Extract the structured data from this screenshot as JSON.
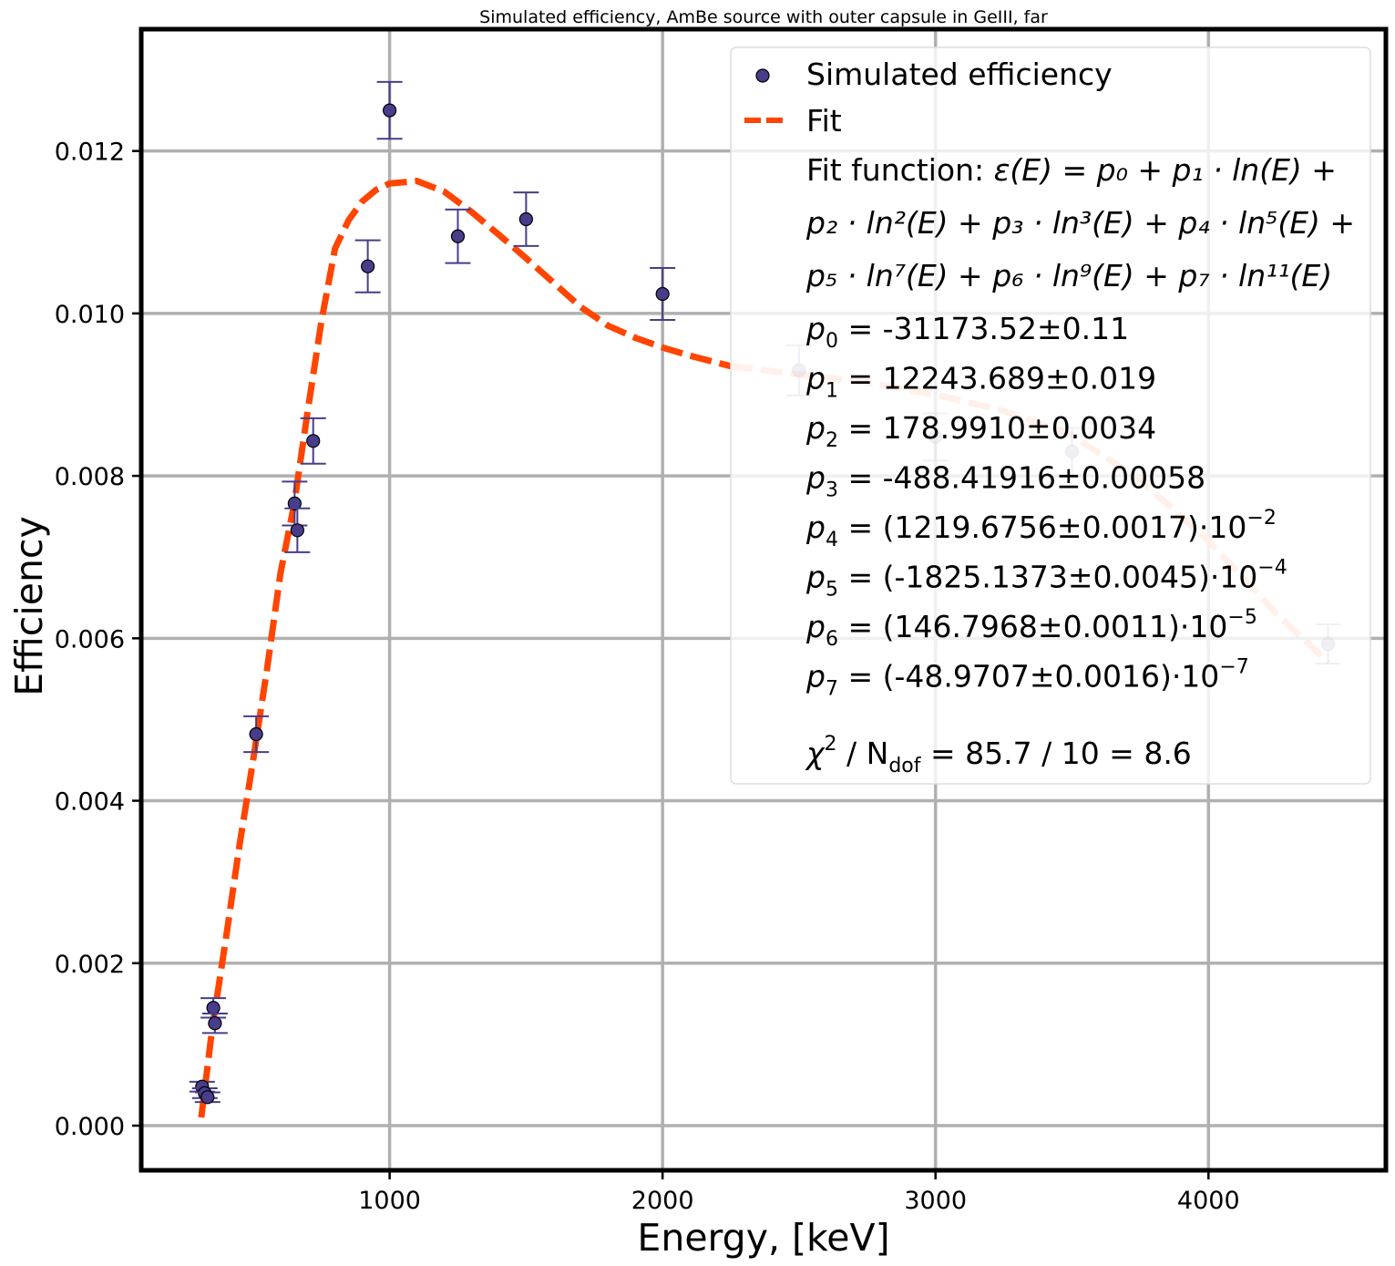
{
  "chart_data": {
    "type": "scatter",
    "title": "Simulated efficiency, AmBe source with outer capsule in GeIII, far",
    "xlabel": "Energy, [keV]",
    "ylabel": "Efficiency",
    "xlim": [
      90,
      4650
    ],
    "ylim": [
      -0.00055,
      0.0135
    ],
    "xticks": [
      1000,
      2000,
      3000,
      4000
    ],
    "xtick_labels": [
      "1000",
      "2000",
      "3000",
      "4000"
    ],
    "yticks": [
      0.0,
      0.002,
      0.004,
      0.006,
      0.008,
      0.01,
      0.012
    ],
    "ytick_labels": [
      "0.000",
      "0.002",
      "0.004",
      "0.006",
      "0.008",
      "0.010",
      "0.012"
    ],
    "grid": true,
    "legend_position": "top-right",
    "series": [
      {
        "name": "Simulated efficiency",
        "kind": "errorbar",
        "color": "#483D8B",
        "points": [
          {
            "x": 313,
            "y": 0.00048,
            "err": 6e-05
          },
          {
            "x": 323,
            "y": 0.0004,
            "err": 6e-05
          },
          {
            "x": 333,
            "y": 0.00035,
            "err": 6e-05
          },
          {
            "x": 354,
            "y": 0.00145,
            "err": 0.00012
          },
          {
            "x": 360,
            "y": 0.00126,
            "err": 0.00012
          },
          {
            "x": 511,
            "y": 0.00482,
            "err": 0.00022
          },
          {
            "x": 652,
            "y": 0.00766,
            "err": 0.00027
          },
          {
            "x": 662,
            "y": 0.00733,
            "err": 0.00027
          },
          {
            "x": 720,
            "y": 0.00843,
            "err": 0.00028
          },
          {
            "x": 920,
            "y": 0.01058,
            "err": 0.00032
          },
          {
            "x": 1000,
            "y": 0.0125,
            "err": 0.00035
          },
          {
            "x": 1250,
            "y": 0.01095,
            "err": 0.00033
          },
          {
            "x": 1500,
            "y": 0.01116,
            "err": 0.00033
          },
          {
            "x": 2000,
            "y": 0.01024,
            "err": 0.00032
          },
          {
            "x": 2500,
            "y": 0.0093,
            "err": 0.00031,
            "faded": true
          },
          {
            "x": 3000,
            "y": 0.00848,
            "err": 0.00029,
            "faded": true
          },
          {
            "x": 3500,
            "y": 0.0083,
            "err": 0.00029,
            "faded": true
          },
          {
            "x": 4438,
            "y": 0.00593,
            "err": 0.00024,
            "faded": true
          }
        ]
      },
      {
        "name": "Fit",
        "kind": "dashed-line",
        "color": "#FF4500",
        "faded_from_x": 2250,
        "faded_color": "#FFB497",
        "points": [
          {
            "x": 310,
            "y": 0.0001
          },
          {
            "x": 350,
            "y": 0.0012
          },
          {
            "x": 400,
            "y": 0.0023
          },
          {
            "x": 450,
            "y": 0.00345
          },
          {
            "x": 500,
            "y": 0.0045
          },
          {
            "x": 550,
            "y": 0.0056
          },
          {
            "x": 600,
            "y": 0.0068
          },
          {
            "x": 650,
            "y": 0.00765
          },
          {
            "x": 700,
            "y": 0.0088
          },
          {
            "x": 750,
            "y": 0.0099
          },
          {
            "x": 800,
            "y": 0.0108
          },
          {
            "x": 850,
            "y": 0.01115
          },
          {
            "x": 900,
            "y": 0.01138
          },
          {
            "x": 950,
            "y": 0.01152
          },
          {
            "x": 1000,
            "y": 0.0116
          },
          {
            "x": 1100,
            "y": 0.01163
          },
          {
            "x": 1200,
            "y": 0.0115
          },
          {
            "x": 1300,
            "y": 0.01125
          },
          {
            "x": 1400,
            "y": 0.01097
          },
          {
            "x": 1500,
            "y": 0.01068
          },
          {
            "x": 1600,
            "y": 0.01038
          },
          {
            "x": 1700,
            "y": 0.01008
          },
          {
            "x": 1800,
            "y": 0.00985
          },
          {
            "x": 1900,
            "y": 0.0097
          },
          {
            "x": 2000,
            "y": 0.00958
          },
          {
            "x": 2100,
            "y": 0.00948
          },
          {
            "x": 2250,
            "y": 0.00935
          },
          {
            "x": 2500,
            "y": 0.00925
          },
          {
            "x": 2750,
            "y": 0.00915
          },
          {
            "x": 3000,
            "y": 0.009
          },
          {
            "x": 3250,
            "y": 0.0088
          },
          {
            "x": 3500,
            "y": 0.0085
          },
          {
            "x": 3750,
            "y": 0.00795
          },
          {
            "x": 4000,
            "y": 0.0072
          },
          {
            "x": 4250,
            "y": 0.0063
          },
          {
            "x": 4440,
            "y": 0.0057
          }
        ]
      }
    ],
    "legend": {
      "scatter_label": "Simulated efficiency",
      "fit_label": "Fit",
      "fit_function_label": "Fit function: ",
      "formula_1": "ε(E) = p₀ + p₁ · ln(E) +",
      "formula_2": "p₂ · ln²(E) + p₃ · ln³(E) + p₄ · ln⁵(E) +",
      "formula_3": "p₅ · ln⁷(E) + p₆ · ln⁹(E) + p₇ · ln¹¹(E)",
      "params": [
        {
          "sub": "0",
          "value": " = -31173.52±0.11",
          "exp": ""
        },
        {
          "sub": "1",
          "value": " = 12243.689±0.019",
          "exp": ""
        },
        {
          "sub": "2",
          "value": " = 178.9910±0.0034",
          "exp": ""
        },
        {
          "sub": "3",
          "value": " = -488.41916±0.00058",
          "exp": ""
        },
        {
          "sub": "4",
          "value": " = (1219.6756±0.0017)·10",
          "exp": "−2"
        },
        {
          "sub": "5",
          "value": " = (-1825.1373±0.0045)·10",
          "exp": "−4"
        },
        {
          "sub": "6",
          "value": " = (146.7968±0.0011)·10",
          "exp": "−5"
        },
        {
          "sub": "7",
          "value": " = (-48.9707±0.0016)·10",
          "exp": "−7"
        }
      ],
      "chi_prefix": "χ",
      "chi_sup": "2",
      "chi_mid": " / N",
      "chi_sub": "dof",
      "chi_value": " = 85.7 / 10 = 8.6"
    }
  }
}
